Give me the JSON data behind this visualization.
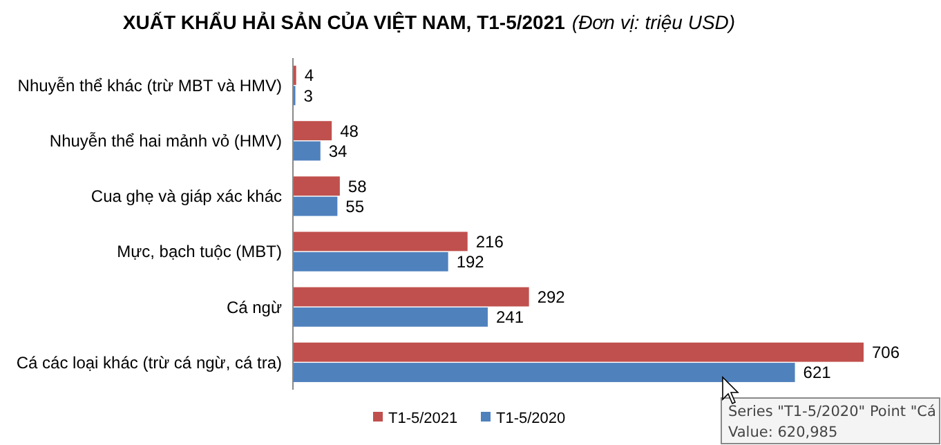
{
  "chart_data": {
    "type": "bar",
    "orientation": "horizontal",
    "title": "XUẤT KHẨU HẢI SẢN CỦA VIỆT NAM, T1-5/2021",
    "subtitle": "(Đơn vị: triệu USD)",
    "categories": [
      "Nhuyễn thể khác (trừ MBT và HMV)",
      "Nhuyễn thể hai mảnh vỏ (HMV)",
      "Cua ghẹ và giáp xác khác",
      "Mực, bạch tuộc (MBT)",
      "Cá ngừ",
      "Cá các loại khác (trừ cá ngừ, cá tra)"
    ],
    "series": [
      {
        "name": "T1-5/2021",
        "color": "#c0504d",
        "values": [
          4,
          48,
          58,
          216,
          292,
          706
        ]
      },
      {
        "name": "T1-5/2020",
        "color": "#4f81bd",
        "values": [
          3,
          34,
          55,
          192,
          241,
          621
        ]
      }
    ],
    "data_labels": true,
    "legend": "bottom",
    "grid": false,
    "annotations": [
      "Series \"T1-5/2020\" Point \"Cá",
      "Value: 620,985"
    ]
  }
}
